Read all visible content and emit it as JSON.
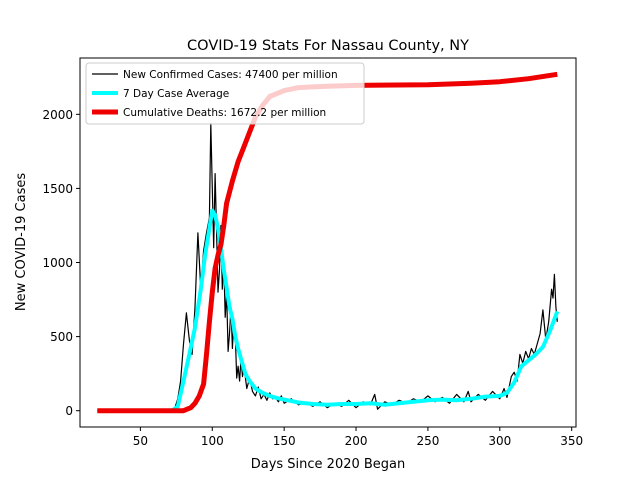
{
  "chart_data": {
    "type": "line",
    "title": "COVID-19 Stats For Nassau County, NY",
    "xlabel": "Days Since 2020 Began",
    "ylabel": "New COVID-19 Cases",
    "xlim": [
      8,
      353
    ],
    "ylim": [
      -110,
      2380
    ],
    "xticks": [
      50,
      100,
      150,
      200,
      250,
      300,
      350
    ],
    "yticks": [
      0,
      500,
      1000,
      1500,
      2000
    ],
    "grid": false,
    "legend": "top-left",
    "series": [
      {
        "name": "New Confirmed Cases: 47400 per million",
        "color": "#000000",
        "width": 1.2,
        "points": [
          [
            20,
            0
          ],
          [
            72,
            0
          ],
          [
            74,
            20
          ],
          [
            76,
            80
          ],
          [
            78,
            200
          ],
          [
            80,
            450
          ],
          [
            82,
            660
          ],
          [
            84,
            480
          ],
          [
            86,
            380
          ],
          [
            88,
            700
          ],
          [
            90,
            1200
          ],
          [
            92,
            820
          ],
          [
            94,
            1080
          ],
          [
            96,
            1200
          ],
          [
            98,
            1300
          ],
          [
            99,
            1940
          ],
          [
            100,
            1500
          ],
          [
            101,
            1100
          ],
          [
            102,
            1600
          ],
          [
            103,
            1200
          ],
          [
            104,
            800
          ],
          [
            105,
            950
          ],
          [
            106,
            1250
          ],
          [
            107,
            820
          ],
          [
            108,
            1000
          ],
          [
            109,
            630
          ],
          [
            110,
            800
          ],
          [
            111,
            400
          ],
          [
            112,
            520
          ],
          [
            113,
            700
          ],
          [
            114,
            420
          ],
          [
            115,
            600
          ],
          [
            116,
            510
          ],
          [
            117,
            220
          ],
          [
            118,
            300
          ],
          [
            119,
            200
          ],
          [
            120,
            350
          ],
          [
            121,
            230
          ],
          [
            122,
            300
          ],
          [
            124,
            150
          ],
          [
            126,
            220
          ],
          [
            128,
            130
          ],
          [
            130,
            100
          ],
          [
            132,
            160
          ],
          [
            134,
            80
          ],
          [
            136,
            110
          ],
          [
            138,
            70
          ],
          [
            140,
            120
          ],
          [
            142,
            80
          ],
          [
            144,
            90
          ],
          [
            146,
            60
          ],
          [
            148,
            100
          ],
          [
            150,
            50
          ],
          [
            155,
            80
          ],
          [
            160,
            40
          ],
          [
            165,
            55
          ],
          [
            170,
            30
          ],
          [
            175,
            60
          ],
          [
            180,
            20
          ],
          [
            185,
            50
          ],
          [
            190,
            30
          ],
          [
            195,
            70
          ],
          [
            200,
            20
          ],
          [
            205,
            60
          ],
          [
            210,
            40
          ],
          [
            213,
            110
          ],
          [
            215,
            10
          ],
          [
            220,
            60
          ],
          [
            225,
            40
          ],
          [
            230,
            70
          ],
          [
            235,
            50
          ],
          [
            240,
            80
          ],
          [
            245,
            60
          ],
          [
            250,
            100
          ],
          [
            255,
            60
          ],
          [
            260,
            90
          ],
          [
            265,
            50
          ],
          [
            270,
            110
          ],
          [
            275,
            60
          ],
          [
            278,
            130
          ],
          [
            280,
            60
          ],
          [
            285,
            110
          ],
          [
            290,
            70
          ],
          [
            295,
            130
          ],
          [
            300,
            80
          ],
          [
            303,
            150
          ],
          [
            305,
            90
          ],
          [
            308,
            230
          ],
          [
            310,
            260
          ],
          [
            312,
            200
          ],
          [
            314,
            380
          ],
          [
            316,
            320
          ],
          [
            318,
            400
          ],
          [
            320,
            350
          ],
          [
            322,
            420
          ],
          [
            324,
            380
          ],
          [
            326,
            450
          ],
          [
            328,
            520
          ],
          [
            330,
            680
          ],
          [
            332,
            480
          ],
          [
            334,
            600
          ],
          [
            336,
            820
          ],
          [
            337,
            760
          ],
          [
            338,
            920
          ],
          [
            339,
            700
          ],
          [
            340,
            600
          ]
        ]
      },
      {
        "name": "7 Day Case Average",
        "color": "#00ffff",
        "width": 4,
        "points": [
          [
            72,
            0
          ],
          [
            76,
            30
          ],
          [
            80,
            200
          ],
          [
            84,
            380
          ],
          [
            88,
            560
          ],
          [
            92,
            820
          ],
          [
            95,
            1050
          ],
          [
            98,
            1230
          ],
          [
            100,
            1350
          ],
          [
            102,
            1320
          ],
          [
            104,
            1230
          ],
          [
            106,
            1100
          ],
          [
            108,
            950
          ],
          [
            110,
            830
          ],
          [
            112,
            700
          ],
          [
            114,
            620
          ],
          [
            116,
            500
          ],
          [
            118,
            420
          ],
          [
            120,
            350
          ],
          [
            123,
            250
          ],
          [
            126,
            200
          ],
          [
            130,
            150
          ],
          [
            135,
            120
          ],
          [
            140,
            100
          ],
          [
            145,
            85
          ],
          [
            150,
            75
          ],
          [
            160,
            55
          ],
          [
            170,
            45
          ],
          [
            180,
            40
          ],
          [
            190,
            45
          ],
          [
            200,
            45
          ],
          [
            210,
            50
          ],
          [
            220,
            40
          ],
          [
            230,
            50
          ],
          [
            240,
            60
          ],
          [
            250,
            70
          ],
          [
            260,
            75
          ],
          [
            270,
            70
          ],
          [
            280,
            80
          ],
          [
            290,
            95
          ],
          [
            300,
            100
          ],
          [
            305,
            120
          ],
          [
            310,
            190
          ],
          [
            315,
            300
          ],
          [
            320,
            340
          ],
          [
            325,
            380
          ],
          [
            330,
            430
          ],
          [
            335,
            540
          ],
          [
            340,
            670
          ]
        ]
      },
      {
        "name": "Cumulative Deaths: 1672.2 per million",
        "color": "#ee0000",
        "width": 5,
        "points": [
          [
            20,
            0
          ],
          [
            80,
            0
          ],
          [
            85,
            20
          ],
          [
            88,
            50
          ],
          [
            91,
            100
          ],
          [
            94,
            180
          ],
          [
            96,
            380
          ],
          [
            98,
            600
          ],
          [
            100,
            800
          ],
          [
            102,
            960
          ],
          [
            104,
            1050
          ],
          [
            106,
            1120
          ],
          [
            108,
            1250
          ],
          [
            110,
            1400
          ],
          [
            114,
            1550
          ],
          [
            118,
            1680
          ],
          [
            122,
            1780
          ],
          [
            126,
            1880
          ],
          [
            130,
            1980
          ],
          [
            135,
            2060
          ],
          [
            140,
            2120
          ],
          [
            150,
            2160
          ],
          [
            160,
            2180
          ],
          [
            170,
            2185
          ],
          [
            180,
            2190
          ],
          [
            200,
            2195
          ],
          [
            250,
            2200
          ],
          [
            280,
            2210
          ],
          [
            300,
            2220
          ],
          [
            320,
            2240
          ],
          [
            340,
            2270
          ]
        ]
      }
    ]
  }
}
